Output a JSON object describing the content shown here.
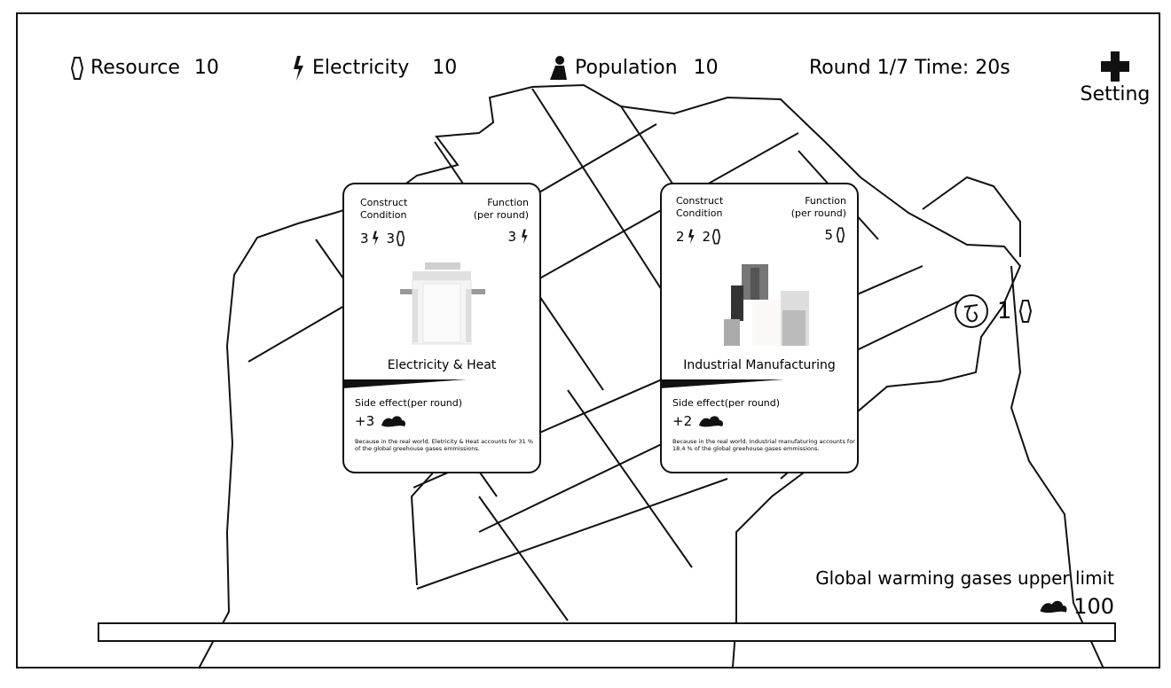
{
  "hud": {
    "resource": {
      "label": "Resource",
      "value": "10",
      "icon": "crystal-icon"
    },
    "electricity": {
      "label": "Electricity",
      "value": "10",
      "icon": "lightning-icon"
    },
    "population": {
      "label": "Population",
      "value": "10",
      "icon": "person-icon"
    },
    "round": "Round 1/7 Time: 20s"
  },
  "settings": {
    "label": "Setting",
    "icon": "cross-icon"
  },
  "cards": [
    {
      "construct_label": "Construct\nCondition",
      "function_label": "Function\n(per round)",
      "cost_electricity": "3",
      "cost_resource": "3",
      "function_value": "3",
      "function_icon": "lightning-icon",
      "title": "Electricity & Heat",
      "side_label": "Side effect(per round)",
      "side_value": "+3",
      "note": "Because in the real world. Eletricity & Heat accounts for 31 % of the global greehouse gases emmissions."
    },
    {
      "construct_label": "Construct\nCondition",
      "function_label": "Function\n(per round)",
      "cost_electricity": "2",
      "cost_resource": "2",
      "function_value": "5",
      "function_icon": "crystal-icon",
      "title": "Industrial Manufacturing",
      "side_label": "Side effect(per round)",
      "side_value": "+2",
      "note": "Because in the real world. Industrial manufaturing accounts for 18.4 % of the global greehouse gases emmissions."
    }
  ],
  "cooldown": {
    "value": "1",
    "icon": "timer-icon"
  },
  "limit": {
    "label": "Global warming gases upper limit",
    "value": "100",
    "progress": 0
  },
  "colors": {
    "stroke": "#111111",
    "gas_fill": "#b9d7a8"
  }
}
